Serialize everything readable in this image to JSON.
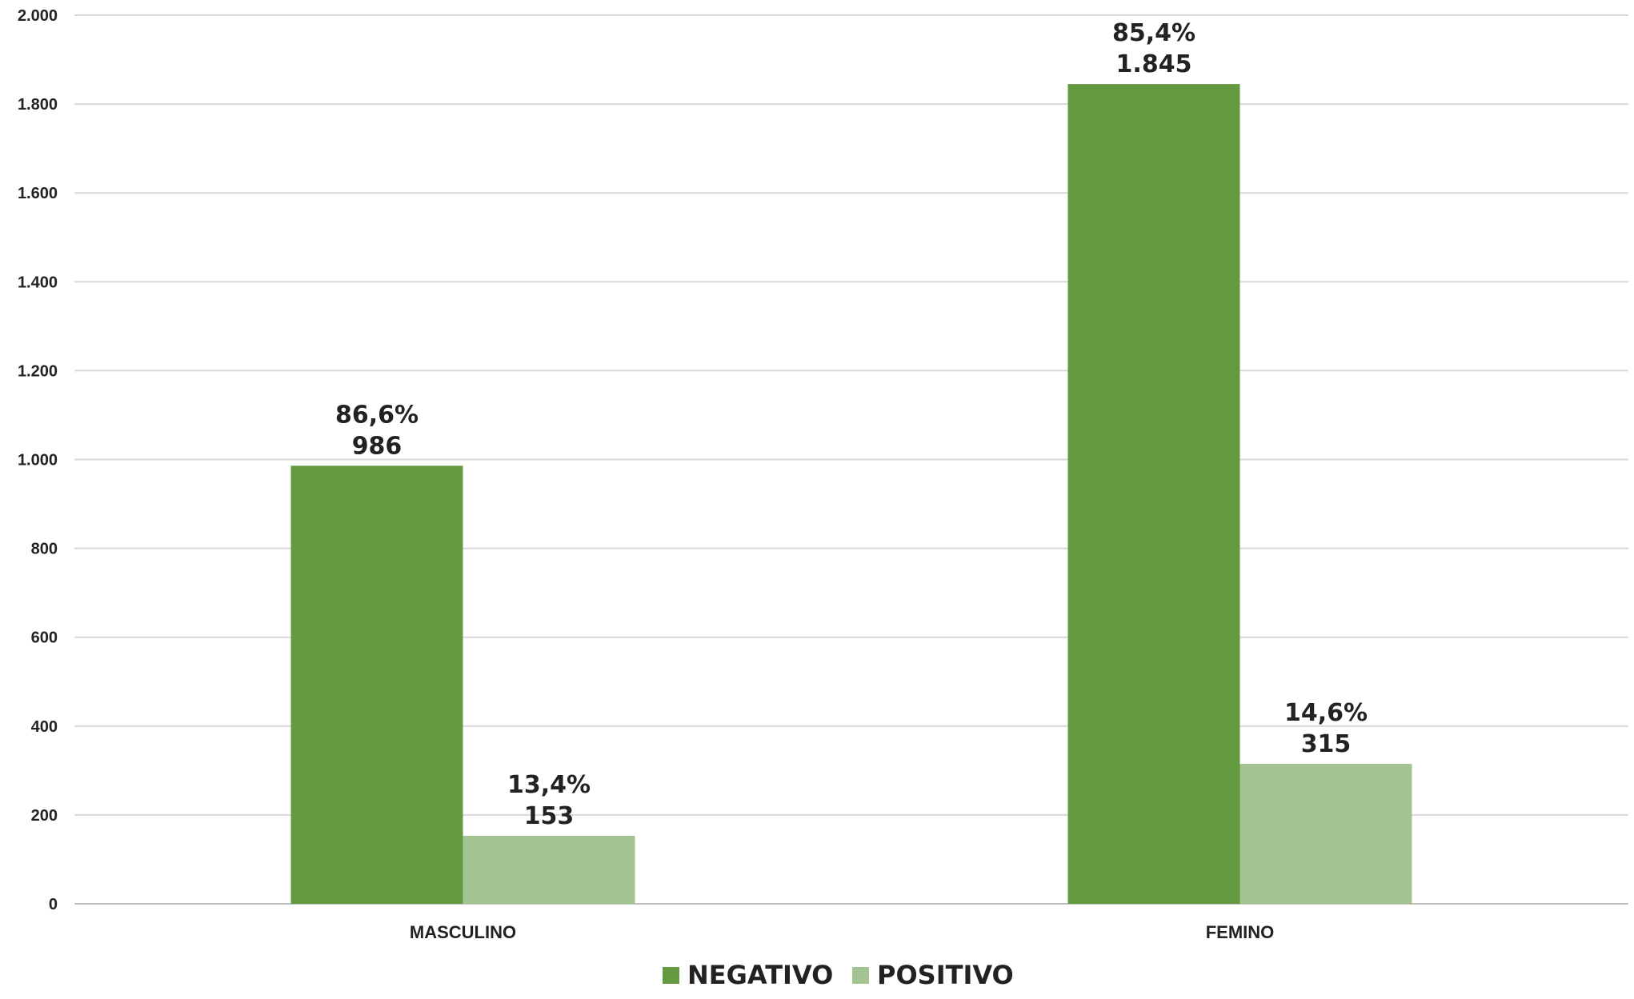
{
  "chart_data": {
    "type": "bar",
    "categories": [
      "MASCULINO",
      "FEMINO"
    ],
    "series": [
      {
        "name": "NEGATIVO",
        "color": "#639a3f",
        "values": [
          986,
          1845
        ],
        "value_labels": [
          "986",
          "1.845"
        ],
        "percent_labels": [
          "86,6%",
          "85,4%"
        ]
      },
      {
        "name": "POSITIVO",
        "color": "#a3c490",
        "values": [
          153,
          315
        ],
        "value_labels": [
          "153",
          "315"
        ],
        "percent_labels": [
          "13,4%",
          "14,6%"
        ]
      }
    ],
    "ylim": [
      0,
      2000
    ],
    "yticks": [
      0,
      200,
      400,
      600,
      800,
      1000,
      1200,
      1400,
      1600,
      1800,
      2000
    ],
    "ytick_labels": [
      "0",
      "200",
      "400",
      "600",
      "800",
      "1.000",
      "1.200",
      "1.400",
      "1.600",
      "1.800",
      "2.000"
    ],
    "grid": true,
    "legend_position": "bottom",
    "title": "",
    "xlabel": "",
    "ylabel": ""
  }
}
